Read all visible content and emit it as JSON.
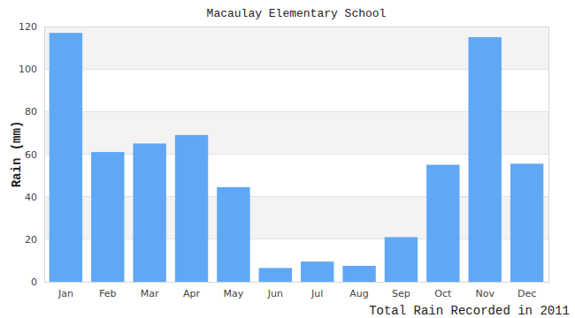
{
  "chart_data": {
    "type": "bar",
    "title": "Macaulay Elementary School",
    "x_label": "Total Rain Recorded in 2011",
    "y_label": "Rain (mm)",
    "categories": [
      "Jan",
      "Feb",
      "Mar",
      "Apr",
      "May",
      "Jun",
      "Jul",
      "Aug",
      "Sep",
      "Oct",
      "Nov",
      "Dec"
    ],
    "values": [
      117,
      61,
      65,
      69,
      44.5,
      6.5,
      9.5,
      7.5,
      21,
      55,
      115,
      55.5
    ],
    "color": "#60a8f6",
    "ylim": [
      0,
      120
    ],
    "yticks": [
      0,
      20,
      40,
      60,
      80,
      100,
      120
    ],
    "grid": true
  }
}
